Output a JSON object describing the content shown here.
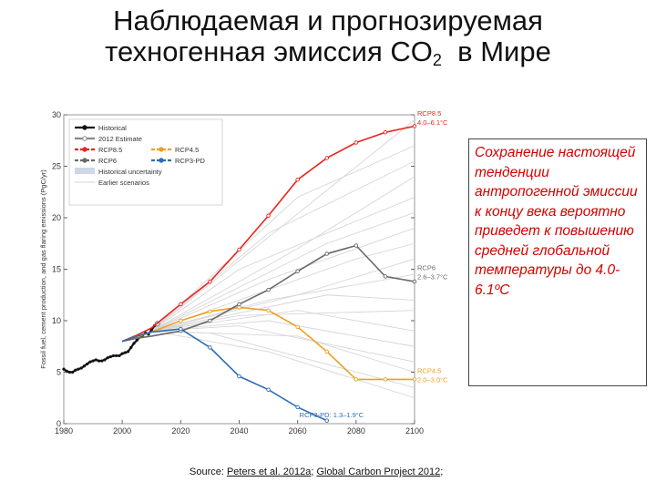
{
  "slide": {
    "title_line1": "Наблюдаемая и прогнозируемая",
    "title_line2_pre": "техногенная эмиссия CO",
    "title_sub": "2",
    "title_line2_post": "в Мире",
    "note": "Сохранение настоящей тенденции антропогенной эмиссии к концу века вероятно приведет к повышению средней глобальной температуры до 4.0-6.1ºC",
    "source_prefix": "Source: ",
    "source_link1": "Peters et al. 2012a",
    "source_sep": "; ",
    "source_link2": "Global Carbon Project 2012",
    "source_suffix": ";"
  },
  "chart_data": {
    "type": "line",
    "title": "",
    "xlabel": "",
    "ylabel": "Fossil fuel, cement production, and gas flaring emissions (PgC/yr)",
    "xlim": [
      1980,
      2100
    ],
    "ylim": [
      0,
      30
    ],
    "xticks": [
      1980,
      2000,
      2020,
      2040,
      2060,
      2080,
      2100
    ],
    "yticks": [
      0,
      5,
      10,
      15,
      20,
      25,
      30
    ],
    "legend_position": "top-left",
    "legend": [
      "Historical",
      "2012 Estimate",
      "RCP8.5",
      "RCP4.5",
      "RCP6",
      "RCP3-PD",
      "Historical uncertainty",
      "Earlier scenarios"
    ],
    "colors": {
      "historical": "#111111",
      "estimate": "#888888",
      "rcp85": "#e8251f",
      "rcp45": "#f0a020",
      "rcp6": "#6a6a6a",
      "rcp3pd": "#2e6db4",
      "earlier": "#d6d6d6"
    },
    "series": [
      {
        "name": "Historical",
        "key": "historical",
        "x": [
          1980,
          1981,
          1982,
          1983,
          1984,
          1985,
          1986,
          1987,
          1988,
          1989,
          1990,
          1991,
          1992,
          1993,
          1994,
          1995,
          1996,
          1997,
          1998,
          1999,
          2000,
          2001,
          2002,
          2003,
          2004,
          2005,
          2006,
          2007,
          2008,
          2009,
          2010,
          2011
        ],
        "y": [
          5.3,
          5.1,
          5.0,
          5.0,
          5.2,
          5.3,
          5.4,
          5.6,
          5.8,
          6.0,
          6.1,
          6.2,
          6.1,
          6.1,
          6.2,
          6.4,
          6.5,
          6.6,
          6.6,
          6.6,
          6.8,
          6.9,
          7.0,
          7.4,
          7.8,
          8.1,
          8.4,
          8.6,
          8.8,
          8.7,
          9.1,
          9.5
        ]
      },
      {
        "name": "2012 Estimate",
        "key": "estimate",
        "x": [
          2012
        ],
        "y": [
          9.7
        ]
      },
      {
        "name": "RCP8.5",
        "key": "rcp85",
        "x": [
          2000,
          2005,
          2010,
          2020,
          2030,
          2040,
          2050,
          2060,
          2070,
          2080,
          2090,
          2100
        ],
        "y": [
          8.0,
          8.6,
          9.3,
          11.6,
          13.8,
          16.9,
          20.2,
          23.7,
          25.8,
          27.3,
          28.3,
          28.9
        ]
      },
      {
        "name": "RCP4.5",
        "key": "rcp45",
        "x": [
          2000,
          2005,
          2010,
          2020,
          2030,
          2040,
          2050,
          2060,
          2070,
          2080,
          2090,
          2100
        ],
        "y": [
          8.0,
          8.4,
          8.9,
          10.0,
          10.9,
          11.3,
          11.0,
          9.4,
          7.0,
          4.3,
          4.3,
          4.3
        ]
      },
      {
        "name": "RCP6",
        "key": "rcp6",
        "x": [
          2000,
          2005,
          2010,
          2020,
          2030,
          2040,
          2050,
          2060,
          2070,
          2080,
          2090,
          2100
        ],
        "y": [
          8.0,
          8.3,
          8.5,
          9.0,
          10.0,
          11.6,
          13.0,
          14.8,
          16.5,
          17.3,
          14.3,
          13.8
        ]
      },
      {
        "name": "RCP3-PD",
        "key": "rcp3pd",
        "x": [
          2000,
          2005,
          2010,
          2020,
          2030,
          2040,
          2050,
          2060,
          2070
        ],
        "y": [
          8.0,
          8.5,
          8.9,
          9.2,
          7.4,
          4.6,
          3.3,
          1.6,
          0.3
        ]
      }
    ],
    "end_labels": [
      {
        "series": "rcp85",
        "lines": [
          "RCP8.5",
          "4.0–6.1°C"
        ]
      },
      {
        "series": "rcp6",
        "lines": [
          "RCP6",
          "2.6–3.7°C"
        ]
      },
      {
        "series": "rcp45",
        "lines": [
          "RCP4.5",
          "2.0–3.0°C"
        ]
      },
      {
        "series": "rcp3pd",
        "lines": [
          "RCP3-PD: 1.3–1.9°C"
        ]
      }
    ],
    "earlier_scenarios": [
      {
        "x": [
          2010,
          2100
        ],
        "y": [
          9.0,
          29.5
        ]
      },
      {
        "x": [
          2010,
          2060,
          2100
        ],
        "y": [
          9.0,
          22.0,
          27.0
        ]
      },
      {
        "x": [
          2010,
          2050,
          2100
        ],
        "y": [
          9.0,
          18.5,
          25.5
        ]
      },
      {
        "x": [
          2010,
          2060,
          2100
        ],
        "y": [
          9.0,
          17.0,
          24.0
        ]
      },
      {
        "x": [
          2010,
          2040,
          2100
        ],
        "y": [
          9.0,
          15.0,
          22.0
        ]
      },
      {
        "x": [
          2010,
          2070,
          2100
        ],
        "y": [
          9.0,
          17.5,
          20.5
        ]
      },
      {
        "x": [
          2010,
          2050,
          2100
        ],
        "y": [
          9.0,
          14.0,
          19.0
        ]
      },
      {
        "x": [
          2010,
          2080,
          2100
        ],
        "y": [
          9.0,
          16.0,
          17.5
        ]
      },
      {
        "x": [
          2010,
          2060,
          2100
        ],
        "y": [
          9.0,
          12.5,
          16.0
        ]
      },
      {
        "x": [
          2010,
          2050,
          2100
        ],
        "y": [
          9.0,
          12.0,
          14.5
        ]
      },
      {
        "x": [
          2010,
          2070,
          2100
        ],
        "y": [
          9.0,
          12.5,
          12.0
        ]
      },
      {
        "x": [
          2010,
          2040,
          2100
        ],
        "y": [
          9.0,
          10.5,
          11.0
        ]
      },
      {
        "x": [
          2010,
          2060,
          2100
        ],
        "y": [
          9.0,
          11.0,
          9.0
        ]
      },
      {
        "x": [
          2010,
          2050,
          2100
        ],
        "y": [
          9.0,
          10.0,
          7.5
        ]
      },
      {
        "x": [
          2010,
          2040,
          2100
        ],
        "y": [
          9.0,
          9.5,
          6.0
        ]
      },
      {
        "x": [
          2010,
          2060,
          2100
        ],
        "y": [
          9.0,
          8.5,
          5.0
        ]
      },
      {
        "x": [
          2010,
          2030,
          2100
        ],
        "y": [
          9.0,
          8.8,
          3.5
        ]
      },
      {
        "x": [
          2010,
          2050,
          2100
        ],
        "y": [
          9.0,
          7.0,
          2.5
        ]
      }
    ]
  }
}
